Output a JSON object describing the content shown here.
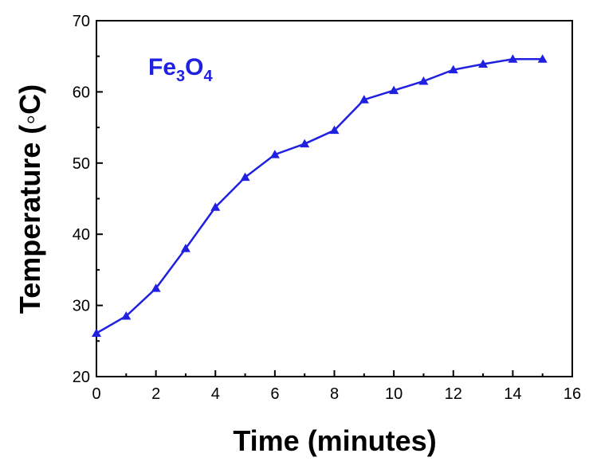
{
  "chart_data": {
    "type": "line",
    "xlabel": "Time (minutes)",
    "ylabel": "Temperature (◦C)",
    "xlim": [
      0,
      16
    ],
    "ylim": [
      20,
      70
    ],
    "x_ticks": [
      0,
      2,
      4,
      6,
      8,
      10,
      12,
      14,
      16
    ],
    "y_ticks": [
      20,
      30,
      40,
      50,
      60,
      70
    ],
    "grid": false,
    "annotation": {
      "main": "Fe",
      "sub1": "3",
      "mid": "O",
      "sub2": "4"
    },
    "series": [
      {
        "color": "#2020e0",
        "marker": "triangle",
        "x": [
          0,
          1,
          2,
          3,
          4,
          5,
          6,
          7,
          8,
          9,
          10,
          11,
          12,
          13,
          14,
          15
        ],
        "y": [
          26.1,
          28.5,
          32.4,
          38.0,
          43.8,
          48.0,
          51.2,
          52.7,
          54.6,
          58.9,
          60.2,
          61.5,
          63.1,
          63.9,
          64.6,
          64.6
        ]
      }
    ]
  }
}
